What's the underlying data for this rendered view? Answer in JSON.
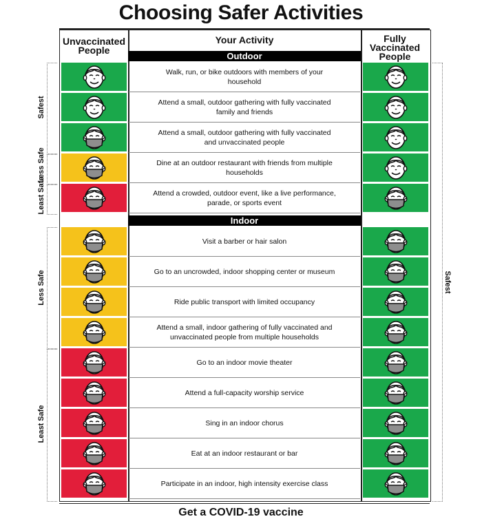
{
  "title": "Choosing Safer Activities",
  "headers": {
    "left": "Unvaccinated People",
    "middle": "Your Activity",
    "right": "Fully Vaccinated People"
  },
  "sections": {
    "outdoor": "Outdoor",
    "indoor": "Indoor"
  },
  "zone_labels": {
    "safest": "Safest",
    "less_safe_outdoor": "Less Safe",
    "least_safe_outdoor": "Least Safe",
    "less_safe_indoor": "Less Safe",
    "least_safe_indoor": "Least Safe",
    "right_safest": "Safest"
  },
  "colors": {
    "green": "#1aa84b",
    "yellow": "#f5c21b",
    "red": "#e21e3a"
  },
  "outdoor_rows": [
    {
      "activity": "Walk, run, or bike outdoors with members of your household",
      "unvax": "green",
      "unvax_mask": false,
      "vax": "green",
      "vax_mask": false
    },
    {
      "activity": "Attend a small, outdoor gathering with fully vaccinated family and friends",
      "unvax": "green",
      "unvax_mask": false,
      "vax": "green",
      "vax_mask": false
    },
    {
      "activity": "Attend a small, outdoor gathering with fully vaccinated and unvaccinated people",
      "unvax": "green",
      "unvax_mask": true,
      "vax": "green",
      "vax_mask": false
    },
    {
      "activity": "Dine at an outdoor restaurant with friends from multiple households",
      "unvax": "yellow",
      "unvax_mask": true,
      "vax": "green",
      "vax_mask": false
    },
    {
      "activity": "Attend a crowded, outdoor event, like a live performance, parade, or sports event",
      "unvax": "red",
      "unvax_mask": true,
      "vax": "green",
      "vax_mask": true
    }
  ],
  "indoor_rows": [
    {
      "activity": "Visit a barber or hair salon",
      "unvax": "yellow",
      "unvax_mask": true,
      "vax": "green",
      "vax_mask": true
    },
    {
      "activity": "Go to an uncrowded, indoor shopping center or museum",
      "unvax": "yellow",
      "unvax_mask": true,
      "vax": "green",
      "vax_mask": true
    },
    {
      "activity": "Ride public transport with limited occupancy",
      "unvax": "yellow",
      "unvax_mask": true,
      "vax": "green",
      "vax_mask": true
    },
    {
      "activity": "Attend a small, indoor gathering of fully vaccinated and unvaccinated people from multiple households",
      "unvax": "yellow",
      "unvax_mask": true,
      "vax": "green",
      "vax_mask": true
    },
    {
      "activity": "Go to an indoor movie theater",
      "unvax": "red",
      "unvax_mask": true,
      "vax": "green",
      "vax_mask": true
    },
    {
      "activity": "Attend a full-capacity worship service",
      "unvax": "red",
      "unvax_mask": true,
      "vax": "green",
      "vax_mask": true
    },
    {
      "activity": "Sing in an indoor chorus",
      "unvax": "red",
      "unvax_mask": true,
      "vax": "green",
      "vax_mask": true
    },
    {
      "activity": "Eat at an indoor restaurant or bar",
      "unvax": "red",
      "unvax_mask": true,
      "vax": "green",
      "vax_mask": true
    },
    {
      "activity": "Participate in an indoor, high intensity exercise class",
      "unvax": "red",
      "unvax_mask": true,
      "vax": "green",
      "vax_mask": true
    }
  ],
  "footer": "Get a COVID-19 vaccine"
}
